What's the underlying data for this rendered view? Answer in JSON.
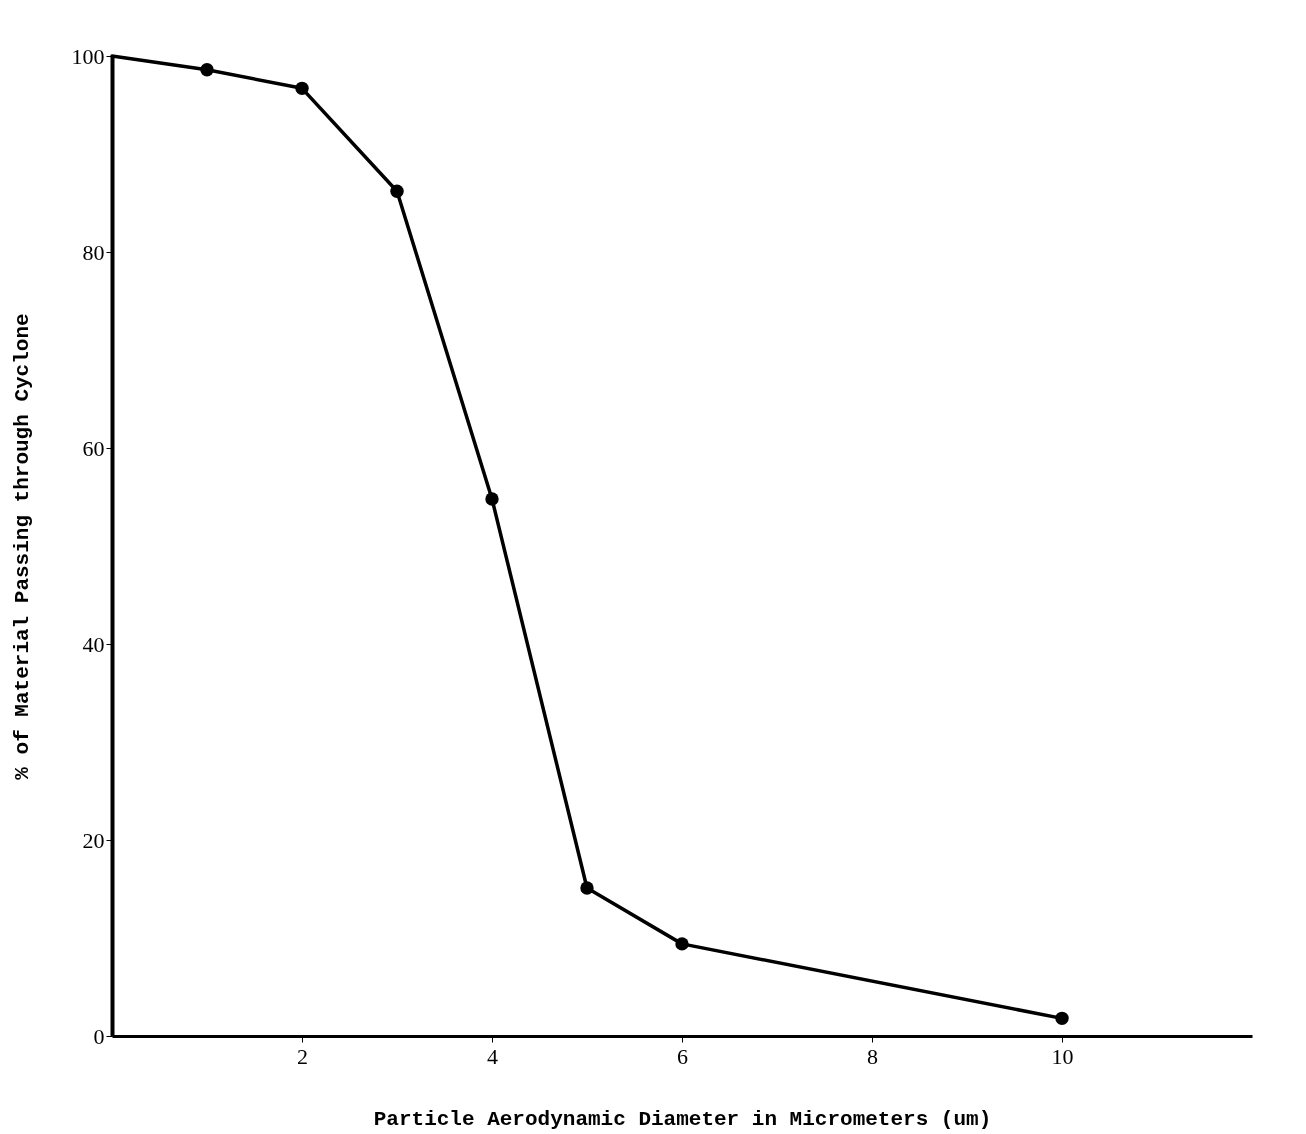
{
  "chart_data": {
    "type": "line",
    "xlabel": "Particle Aerodynamic Diameter in Micrometers (um)",
    "ylabel": "% of Material Passing through Cyclone",
    "series": [
      {
        "color": "#000000",
        "x": [
          0,
          1,
          2,
          3,
          4,
          5,
          6,
          10
        ],
        "values": [
          100,
          98.6,
          96.7,
          86.2,
          54.8,
          15.1,
          9.4,
          1.8
        ],
        "marker": "none"
      },
      {
        "type": "scatter",
        "color": "#000000",
        "x": [
          1,
          2,
          3,
          4,
          5,
          6,
          10
        ],
        "values": [
          98.6,
          96.7,
          86.2,
          54.8,
          15.1,
          9.4,
          1.8
        ],
        "marker": "circle"
      }
    ],
    "xlim": [
      0,
      12
    ],
    "ylim": [
      0,
      100
    ],
    "xticks": [
      2,
      4,
      6,
      8,
      10
    ],
    "yticks": [
      0,
      20,
      40,
      60,
      80,
      100
    ],
    "grid": false,
    "line_style": "solid"
  }
}
